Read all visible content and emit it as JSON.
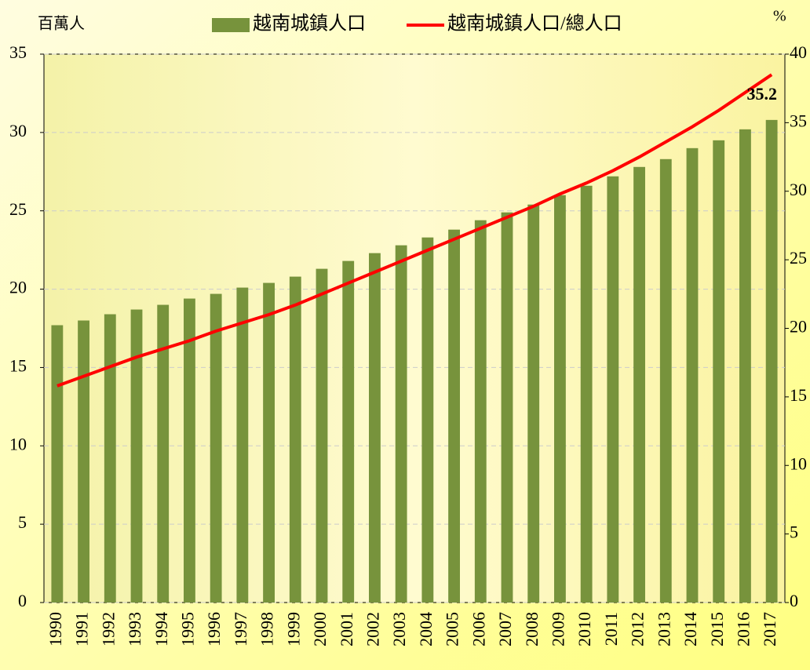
{
  "chart_data": {
    "type": "bar_line",
    "y_label": "百萬人",
    "y2_label": "%",
    "categories": [
      "1990",
      "1991",
      "1992",
      "1993",
      "1994",
      "1995",
      "1996",
      "1997",
      "1998",
      "1999",
      "2000",
      "2001",
      "2002",
      "2003",
      "2004",
      "2005",
      "2006",
      "2007",
      "2008",
      "2009",
      "2010",
      "2011",
      "2012",
      "2013",
      "2014",
      "2015",
      "2016",
      "2017"
    ],
    "series": [
      {
        "name": "越南城鎮人口",
        "type": "bar",
        "color": "#77933c",
        "values": [
          17.7,
          18.0,
          18.4,
          18.7,
          19.0,
          19.4,
          19.7,
          20.1,
          20.4,
          20.8,
          21.3,
          21.8,
          22.3,
          22.8,
          23.3,
          23.8,
          24.4,
          24.9,
          25.4,
          26.0,
          26.6,
          27.2,
          27.8,
          28.3,
          29.0,
          29.5,
          30.2,
          30.8
        ]
      },
      {
        "name": "越南城鎮人口/總人口",
        "type": "line",
        "color": "#ff0000",
        "axis": "y2",
        "values": [
          15.8,
          16.5,
          17.2,
          17.9,
          18.5,
          19.1,
          19.8,
          20.4,
          21.0,
          21.7,
          22.5,
          23.3,
          24.1,
          24.9,
          25.7,
          26.5,
          27.3,
          28.1,
          28.9,
          29.8,
          30.6,
          31.5,
          32.5,
          33.6,
          34.7,
          35.9,
          37.2,
          38.5
        ]
      }
    ],
    "annotation": "35.2",
    "ylim": [
      0,
      35
    ],
    "yticks": [
      0,
      5,
      10,
      15,
      20,
      25,
      30,
      35
    ],
    "y2lim": [
      0,
      40
    ],
    "y2ticks": [
      0,
      5,
      10,
      15,
      20,
      25,
      30,
      35,
      40
    ],
    "grid": true
  }
}
